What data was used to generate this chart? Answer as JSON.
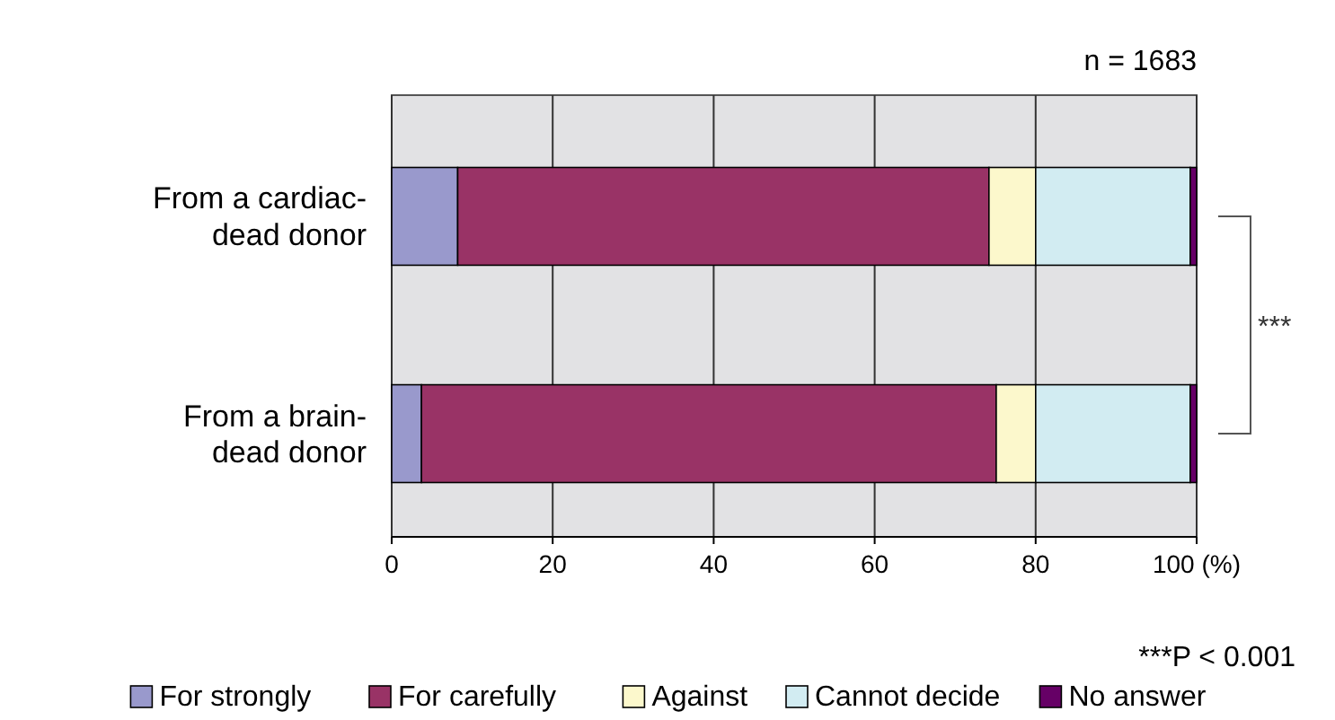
{
  "chart_data": {
    "type": "bar",
    "orientation": "horizontal",
    "stacked": true,
    "categories": [
      "From a cardiac-dead donor",
      "From a brain-dead donor"
    ],
    "series": [
      {
        "name": "For strongly",
        "color": "#9999cc",
        "values": [
          8.2,
          3.7
        ]
      },
      {
        "name": "For carefully",
        "color": "#993366",
        "values": [
          66.0,
          71.4
        ]
      },
      {
        "name": "Against",
        "color": "#fcf8cc",
        "values": [
          5.8,
          4.9
        ]
      },
      {
        "name": "Cannot decide",
        "color": "#d2ecf2",
        "values": [
          19.2,
          19.2
        ]
      },
      {
        "name": "No answer",
        "color": "#660066",
        "values": [
          0.8,
          0.8
        ]
      }
    ],
    "xlim": [
      0,
      100
    ],
    "xticks": [
      0,
      20,
      40,
      60,
      80,
      {
        "value": 100,
        "label": "100 (%)"
      }
    ],
    "grid": "x",
    "legend": "bottom",
    "annotations": [
      "n = 1683",
      "***",
      "***P < 0.001"
    ]
  }
}
